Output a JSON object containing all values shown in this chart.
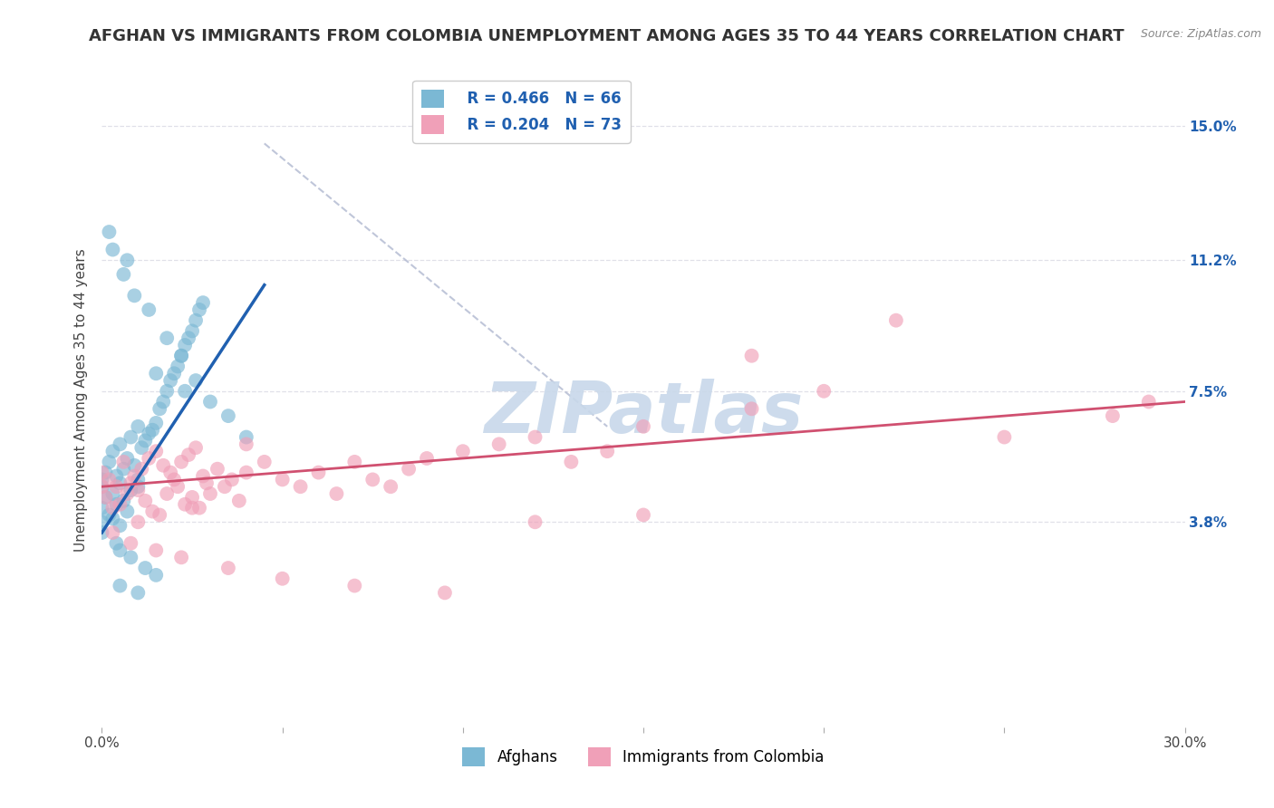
{
  "title": "AFGHAN VS IMMIGRANTS FROM COLOMBIA UNEMPLOYMENT AMONG AGES 35 TO 44 YEARS CORRELATION CHART",
  "source": "Source: ZipAtlas.com",
  "ylabel": "Unemployment Among Ages 35 to 44 years",
  "xlim": [
    0.0,
    30.0
  ],
  "ylim": [
    -2.0,
    16.5
  ],
  "y_tick_vals": [
    3.8,
    7.5,
    11.2,
    15.0
  ],
  "y_tick_labels": [
    "3.8%",
    "7.5%",
    "11.2%",
    "15.0%"
  ],
  "afghan_color": "#7bb8d4",
  "colombia_color": "#f0a0b8",
  "afghan_R": 0.466,
  "afghan_N": 66,
  "colombia_R": 0.204,
  "colombia_N": 73,
  "afghan_line_color": "#2060b0",
  "colombia_line_color": "#d05070",
  "ref_line_color": "#b0b8d0",
  "background_color": "#ffffff",
  "watermark": "ZIPatlas",
  "watermark_color": "#c8d8ea",
  "title_fontsize": 13,
  "label_fontsize": 11,
  "tick_fontsize": 11,
  "legend_fontsize": 12,
  "afghan_x": [
    0.0,
    0.0,
    0.0,
    0.0,
    0.0,
    0.1,
    0.1,
    0.2,
    0.2,
    0.3,
    0.3,
    0.3,
    0.4,
    0.4,
    0.5,
    0.5,
    0.5,
    0.6,
    0.6,
    0.7,
    0.7,
    0.8,
    0.8,
    0.9,
    1.0,
    1.0,
    1.0,
    1.1,
    1.2,
    1.3,
    1.4,
    1.5,
    1.6,
    1.7,
    1.8,
    1.9,
    2.0,
    2.1,
    2.2,
    2.3,
    2.4,
    2.5,
    2.6,
    2.7,
    2.8,
    0.4,
    0.5,
    0.8,
    1.2,
    1.5,
    0.3,
    0.6,
    0.9,
    1.3,
    1.8,
    2.2,
    2.6,
    3.0,
    3.5,
    4.0,
    0.2,
    0.7,
    1.5,
    2.3,
    0.5,
    1.0
  ],
  "afghan_y": [
    3.5,
    4.2,
    4.8,
    5.0,
    3.8,
    4.5,
    5.2,
    4.0,
    5.5,
    3.9,
    4.6,
    5.8,
    4.3,
    5.1,
    3.7,
    4.9,
    6.0,
    4.4,
    5.3,
    4.1,
    5.6,
    4.7,
    6.2,
    5.4,
    5.0,
    6.5,
    4.8,
    5.9,
    6.1,
    6.3,
    6.4,
    6.6,
    7.0,
    7.2,
    7.5,
    7.8,
    8.0,
    8.2,
    8.5,
    8.8,
    9.0,
    9.2,
    9.5,
    9.8,
    10.0,
    3.2,
    3.0,
    2.8,
    2.5,
    2.3,
    11.5,
    10.8,
    10.2,
    9.8,
    9.0,
    8.5,
    7.8,
    7.2,
    6.8,
    6.2,
    12.0,
    11.2,
    8.0,
    7.5,
    2.0,
    1.8
  ],
  "colombia_x": [
    0.0,
    0.0,
    0.1,
    0.2,
    0.3,
    0.4,
    0.5,
    0.6,
    0.7,
    0.8,
    0.9,
    1.0,
    1.1,
    1.2,
    1.3,
    1.4,
    1.5,
    1.6,
    1.7,
    1.8,
    1.9,
    2.0,
    2.1,
    2.2,
    2.3,
    2.4,
    2.5,
    2.6,
    2.7,
    2.8,
    2.9,
    3.0,
    3.2,
    3.4,
    3.6,
    3.8,
    4.0,
    4.5,
    5.0,
    5.5,
    6.0,
    6.5,
    7.0,
    7.5,
    8.0,
    8.5,
    9.0,
    10.0,
    11.0,
    12.0,
    13.0,
    14.0,
    15.0,
    18.0,
    20.0,
    28.0,
    29.0,
    0.3,
    0.8,
    1.5,
    2.2,
    3.5,
    5.0,
    7.0,
    9.5,
    12.0,
    15.0,
    18.0,
    22.0,
    25.0,
    1.0,
    2.5,
    4.0
  ],
  "colombia_y": [
    4.8,
    5.2,
    4.5,
    5.0,
    4.2,
    4.8,
    4.3,
    5.5,
    4.6,
    4.9,
    5.1,
    4.7,
    5.3,
    4.4,
    5.6,
    4.1,
    5.8,
    4.0,
    5.4,
    4.6,
    5.2,
    5.0,
    4.8,
    5.5,
    4.3,
    5.7,
    4.5,
    5.9,
    4.2,
    5.1,
    4.9,
    4.6,
    5.3,
    4.8,
    5.0,
    4.4,
    5.2,
    5.5,
    5.0,
    4.8,
    5.2,
    4.6,
    5.5,
    5.0,
    4.8,
    5.3,
    5.6,
    5.8,
    6.0,
    6.2,
    5.5,
    5.8,
    6.5,
    7.0,
    7.5,
    6.8,
    7.2,
    3.5,
    3.2,
    3.0,
    2.8,
    2.5,
    2.2,
    2.0,
    1.8,
    3.8,
    4.0,
    8.5,
    9.5,
    6.2,
    3.8,
    4.2,
    6.0
  ],
  "grid_color": "#e0e0e8",
  "axis_color": "#888888",
  "ref_line_x1": 5.0,
  "ref_line_y1": 15.0,
  "ref_line_x2": 15.0,
  "ref_line_y2": 15.0
}
